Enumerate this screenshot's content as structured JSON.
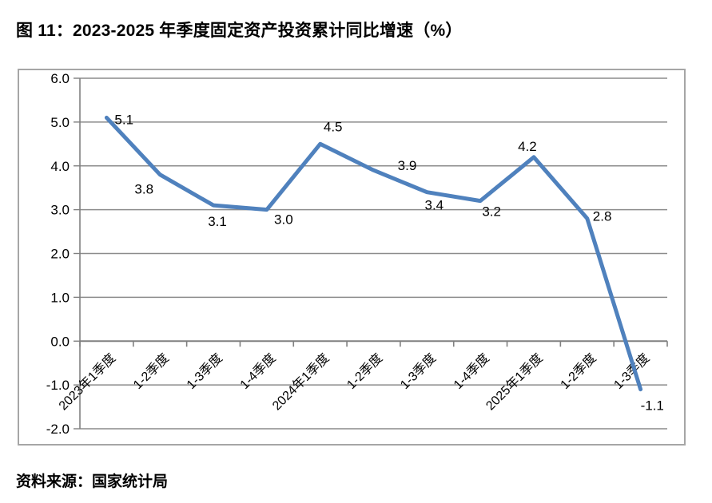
{
  "page": {
    "title": "图 11：2023-2025 年季度固定资产投资累计同比增速（%）",
    "source": "资料来源：国家统计局"
  },
  "chart_data": {
    "type": "line",
    "title": "2023-2025 年季度固定资产投资累计同比增速（%）",
    "categories": [
      "2023年1季度",
      "1-2季度",
      "1-3季度",
      "1-4季度",
      "2024年1季度",
      "1-2季度",
      "1-3季度",
      "1-4季度",
      "2025年1季度",
      "1-2季度",
      "1-3季度"
    ],
    "values": [
      5.1,
      3.8,
      3.1,
      3.0,
      4.5,
      3.9,
      3.4,
      3.2,
      4.2,
      2.8,
      -1.1
    ],
    "data_labels": [
      "5.1",
      "3.8",
      "3.1",
      "3.0",
      "4.5",
      "3.9",
      "3.4",
      "3.2",
      "4.2",
      "2.8",
      "-1.1"
    ],
    "xlabel": "",
    "ylabel": "",
    "ylim": [
      -2.0,
      6.0
    ],
    "ytick_step": 1.0,
    "ytick_labels": [
      "6.0",
      "5.0",
      "4.0",
      "3.0",
      "2.0",
      "1.0",
      "0.0",
      "-1.0",
      "-2.0"
    ],
    "grid": true,
    "legend": "none",
    "colors": {
      "line": "#4F81BD",
      "gridline": "#8C8C8C",
      "axis": "#808080",
      "frame": "#A6A6A6",
      "text": "#000000"
    }
  }
}
